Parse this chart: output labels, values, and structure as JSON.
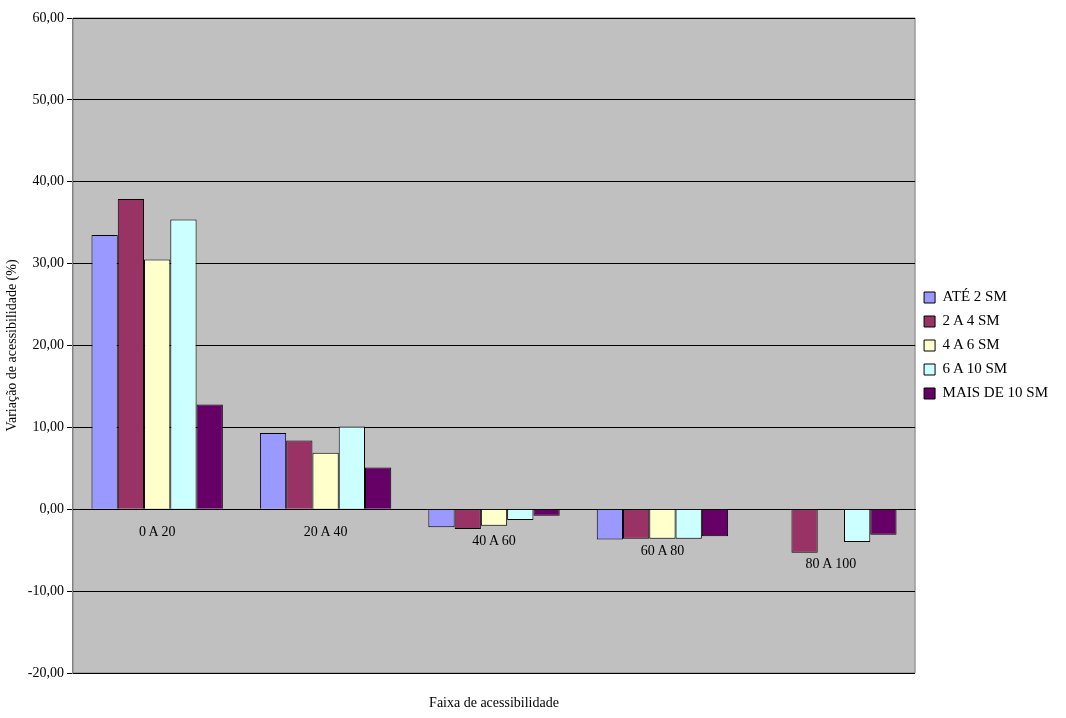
{
  "chart_data": {
    "type": "bar",
    "xlabel": "Faixa de acessibilidade",
    "ylabel": "Variação de acessibilidade (%)",
    "categories": [
      "0 A 20",
      "20 A 40",
      "40 A 60",
      "60 A 80",
      "80 A 100"
    ],
    "series": [
      {
        "name": "ATÉ 2 SM",
        "color": "#9999ff",
        "values": [
          33.5,
          9.3,
          -2.2,
          -3.7,
          null
        ]
      },
      {
        "name": "2 A 4 SM",
        "color": "#993366",
        "values": [
          37.9,
          8.4,
          -2.4,
          -3.6,
          -5.3
        ]
      },
      {
        "name": "4 A 6 SM",
        "color": "#ffffcc",
        "values": [
          30.5,
          6.9,
          -2.0,
          -3.6,
          null
        ]
      },
      {
        "name": "6 A 10 SM",
        "color": "#ccffff",
        "values": [
          35.4,
          10.1,
          -1.3,
          -3.6,
          -4.0
        ]
      },
      {
        "name": "MAIS DE 10 SM",
        "color": "#660066",
        "values": [
          12.8,
          5.1,
          -0.8,
          -3.3,
          -3.1
        ]
      }
    ],
    "ylim": [
      -20,
      60
    ],
    "yticks": [
      {
        "value": -20,
        "label": "-20,00"
      },
      {
        "value": -10,
        "label": "-10,00"
      },
      {
        "value": 0,
        "label": "0,00"
      },
      {
        "value": 10,
        "label": "10,00"
      },
      {
        "value": 20,
        "label": "20,00"
      },
      {
        "value": 30,
        "label": "30,00"
      },
      {
        "value": 40,
        "label": "40,00"
      },
      {
        "value": 50,
        "label": "50,00"
      },
      {
        "value": 60,
        "label": "60,00"
      }
    ],
    "grid": "y",
    "legend": "right"
  }
}
